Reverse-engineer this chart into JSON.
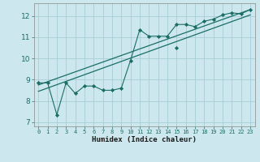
{
  "xlabel": "Humidex (Indice chaleur)",
  "bg_color": "#cce8ee",
  "grid_color": "#a8cdd5",
  "line_color": "#1a6e64",
  "xlim": [
    -0.5,
    23.5
  ],
  "ylim": [
    6.8,
    12.6
  ],
  "xticks": [
    0,
    1,
    2,
    3,
    4,
    5,
    6,
    7,
    8,
    9,
    10,
    11,
    12,
    13,
    14,
    15,
    16,
    17,
    18,
    19,
    20,
    21,
    22,
    23
  ],
  "yticks": [
    7,
    8,
    9,
    10,
    11,
    12
  ],
  "zigzag_x": [
    0,
    1,
    2,
    3,
    4,
    5,
    6,
    7,
    8,
    9,
    10,
    11,
    12,
    13,
    14,
    15,
    16,
    17,
    18,
    19,
    20,
    21,
    22,
    23
  ],
  "zigzag_y": [
    8.85,
    8.85,
    7.35,
    8.85,
    8.35,
    8.7,
    8.7,
    8.5,
    8.5,
    8.6,
    9.9,
    11.35,
    11.05,
    11.05,
    11.05,
    11.6,
    11.6,
    11.5,
    11.75,
    11.85,
    12.05,
    12.15,
    12.1,
    12.3
  ],
  "line2_x": [
    0,
    23
  ],
  "line2_y": [
    8.75,
    12.3
  ],
  "line3_x": [
    0,
    23
  ],
  "line3_y": [
    8.45,
    12.05
  ],
  "markers_x": [
    0,
    1,
    2,
    3,
    4,
    5,
    6,
    7,
    8,
    9,
    10,
    11,
    12,
    13,
    14,
    15,
    15,
    16,
    17,
    18,
    19,
    20,
    21,
    22,
    23
  ],
  "markers_y": [
    8.85,
    8.85,
    7.35,
    8.85,
    8.35,
    8.7,
    8.7,
    8.5,
    8.5,
    8.6,
    9.9,
    11.35,
    11.05,
    11.05,
    11.05,
    11.6,
    10.5,
    11.6,
    11.5,
    11.75,
    11.85,
    12.05,
    12.15,
    12.1,
    12.3
  ]
}
